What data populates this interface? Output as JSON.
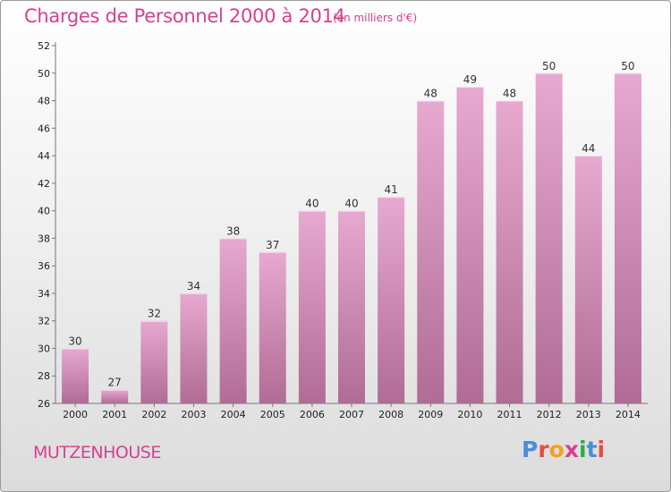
{
  "header": {
    "title": "Charges de Personnel 2000 à 2014",
    "subtitle": "(en milliers d'€)"
  },
  "footer": {
    "commune": "MUTZENHOUSE",
    "logo": "Proxiti"
  },
  "colors": {
    "title": "#d8408f",
    "bar_top": "#e7a9d0",
    "bar_bottom": "#b06c95",
    "logo_letters": [
      "#4a8fd8",
      "#e94c3d",
      "#f2a21c",
      "#d8408f",
      "#2eaa4a",
      "#4a8fd8",
      "#e94c3d"
    ]
  },
  "chart_data": {
    "type": "bar",
    "title": "Charges de Personnel 2000 à 2014",
    "subtitle": "(en milliers d'€)",
    "categories": [
      "2000",
      "2001",
      "2002",
      "2003",
      "2004",
      "2005",
      "2006",
      "2007",
      "2008",
      "2009",
      "2010",
      "2011",
      "2012",
      "2013",
      "2014"
    ],
    "values": [
      30,
      27,
      32,
      34,
      38,
      37,
      40,
      40,
      41,
      48,
      49,
      48,
      50,
      44,
      50
    ],
    "xlabel": "",
    "ylabel": "",
    "ylim": [
      26,
      52
    ],
    "yticks": [
      26,
      28,
      30,
      32,
      34,
      36,
      38,
      40,
      42,
      44,
      46,
      48,
      50,
      52
    ],
    "grid": false,
    "data_labels": true
  }
}
